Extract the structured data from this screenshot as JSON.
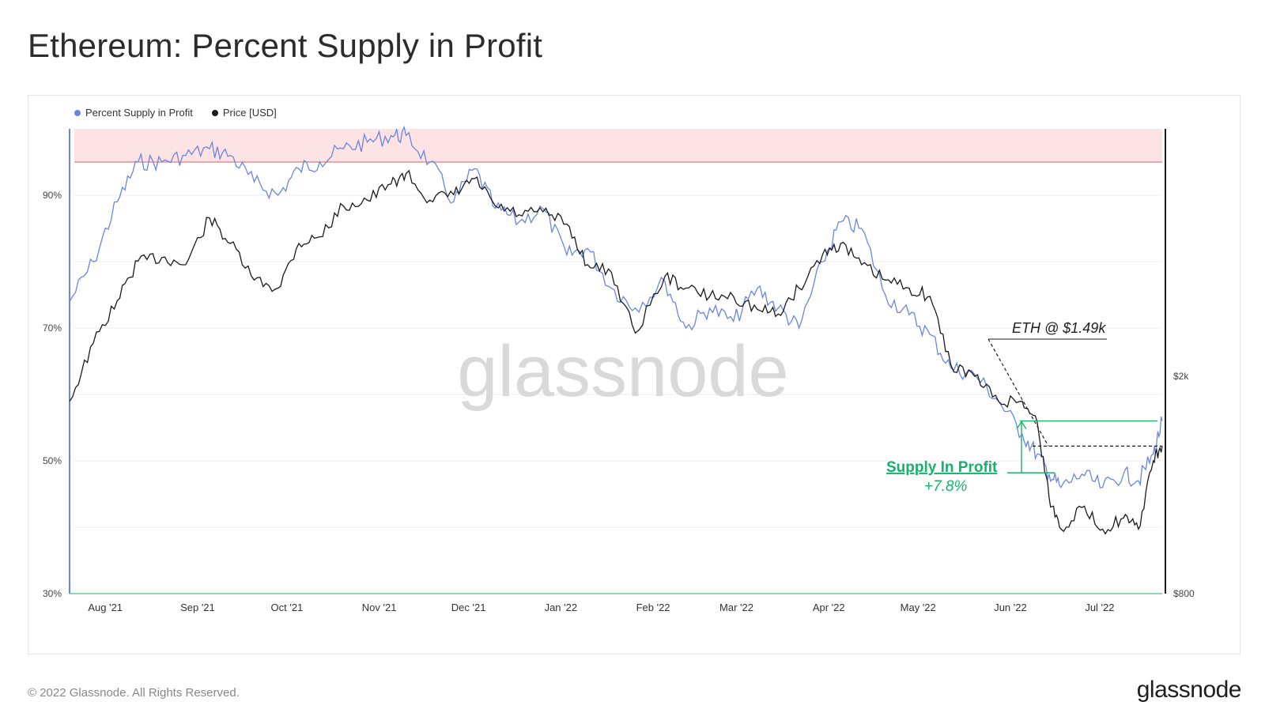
{
  "title": "Ethereum: Percent Supply in Profit",
  "footer": {
    "copyright": "© 2022 Glassnode. All Rights Reserved.",
    "brand": "glassnode"
  },
  "watermark": "glassnode",
  "colors": {
    "supply": "#6b86e0",
    "price": "#1a1a1a",
    "band": "#fde3e3",
    "band_line": "#e47a86",
    "green": "#17b26a"
  },
  "chart_data": {
    "type": "line",
    "legend": [
      "Percent Supply in Profit",
      "Price [USD]"
    ],
    "x_ticks": [
      "Aug '21",
      "Sep '21",
      "Oct '21",
      "Nov '21",
      "Dec '21",
      "Jan '22",
      "Feb '22",
      "Mar '22",
      "Apr '22",
      "May '22",
      "Jun '22",
      "Jul '22"
    ],
    "y_left_ticks": [
      "90%",
      "70%",
      "50%",
      "30%"
    ],
    "y_right_ticks": [
      "$2k",
      "$800"
    ],
    "y_left_range": [
      30,
      100
    ],
    "series": [
      {
        "name": "Percent Supply in Profit",
        "axis": "left",
        "x": [
          "2021-07-20",
          "2021-07-28",
          "2021-08-05",
          "2021-08-12",
          "2021-08-20",
          "2021-08-28",
          "2021-09-05",
          "2021-09-12",
          "2021-09-20",
          "2021-09-28",
          "2021-10-05",
          "2021-10-12",
          "2021-10-20",
          "2021-10-28",
          "2021-11-05",
          "2021-11-10",
          "2021-11-18",
          "2021-11-26",
          "2021-12-03",
          "2021-12-10",
          "2021-12-18",
          "2021-12-26",
          "2022-01-03",
          "2022-01-10",
          "2022-01-18",
          "2022-01-26",
          "2022-02-05",
          "2022-02-12",
          "2022-02-20",
          "2022-02-28",
          "2022-03-08",
          "2022-03-15",
          "2022-03-22",
          "2022-03-30",
          "2022-04-05",
          "2022-04-12",
          "2022-04-20",
          "2022-04-28",
          "2022-05-05",
          "2022-05-12",
          "2022-05-20",
          "2022-05-28",
          "2022-06-05",
          "2022-06-10",
          "2022-06-14",
          "2022-06-18",
          "2022-06-25",
          "2022-07-02",
          "2022-07-09",
          "2022-07-14",
          "2022-07-19",
          "2022-07-22"
        ],
        "values": [
          74,
          80,
          89,
          95,
          95,
          96,
          97,
          96,
          92,
          90,
          94,
          95,
          97,
          98,
          99,
          99,
          95,
          89,
          94,
          88,
          86,
          88,
          81,
          82,
          76,
          73,
          77,
          70,
          73,
          71,
          76,
          73,
          70,
          80,
          86,
          85,
          75,
          72,
          69,
          64,
          63,
          59,
          54,
          51,
          48,
          46,
          48,
          46,
          48,
          47,
          51,
          56
        ]
      },
      {
        "name": "Price [USD]",
        "axis": "right",
        "x": [
          "2021-07-20",
          "2021-07-28",
          "2021-08-05",
          "2021-08-12",
          "2021-08-20",
          "2021-08-28",
          "2021-09-05",
          "2021-09-12",
          "2021-09-20",
          "2021-09-28",
          "2021-10-05",
          "2021-10-12",
          "2021-10-20",
          "2021-10-28",
          "2021-11-05",
          "2021-11-10",
          "2021-11-18",
          "2021-11-26",
          "2021-12-03",
          "2021-12-10",
          "2021-12-18",
          "2021-12-26",
          "2022-01-03",
          "2022-01-10",
          "2022-01-18",
          "2022-01-26",
          "2022-02-05",
          "2022-02-12",
          "2022-02-20",
          "2022-02-28",
          "2022-03-08",
          "2022-03-15",
          "2022-03-22",
          "2022-03-30",
          "2022-04-05",
          "2022-04-12",
          "2022-04-20",
          "2022-04-28",
          "2022-05-05",
          "2022-05-12",
          "2022-05-20",
          "2022-05-28",
          "2022-06-05",
          "2022-06-10",
          "2022-06-14",
          "2022-06-18",
          "2022-06-25",
          "2022-07-02",
          "2022-07-09",
          "2022-07-14",
          "2022-07-19",
          "2022-07-22"
        ],
        "values": [
          1800,
          2300,
          2750,
          3250,
          3300,
          3200,
          3900,
          3500,
          3000,
          2900,
          3500,
          3600,
          4100,
          4200,
          4500,
          4700,
          4200,
          4300,
          4600,
          4100,
          3950,
          4000,
          3800,
          3200,
          3100,
          2400,
          3050,
          2900,
          2800,
          2800,
          2650,
          2600,
          2900,
          3350,
          3500,
          3200,
          3000,
          2900,
          2800,
          2100,
          2000,
          1800,
          1800,
          1650,
          1200,
          1050,
          1150,
          1050,
          1100,
          1050,
          1400,
          1490
        ]
      }
    ],
    "annotations": [
      {
        "text": "ETH @ $1.49k"
      },
      {
        "title": "Supply In Profit",
        "value": "+7.8%"
      }
    ],
    "highlight_band_left": [
      95,
      100
    ]
  }
}
